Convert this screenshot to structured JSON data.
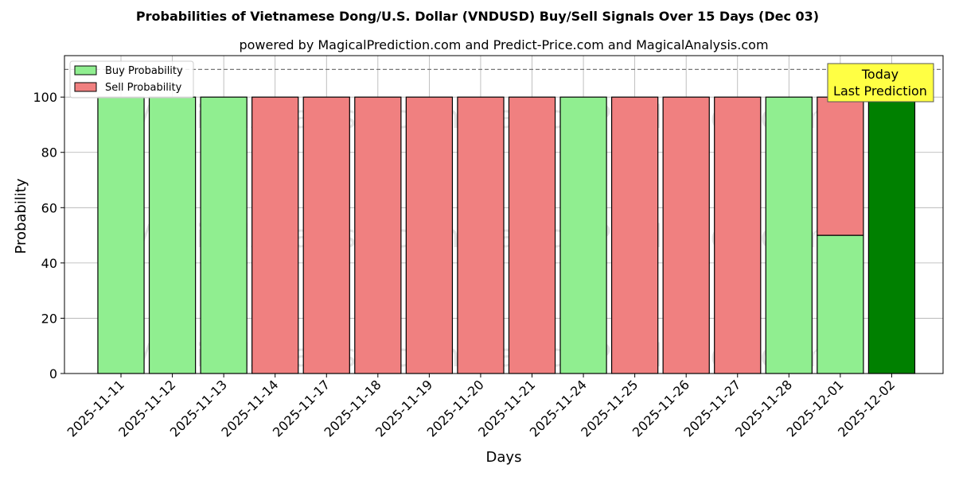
{
  "chart_data": {
    "type": "bar",
    "stacked": true,
    "title": "Probabilities of Vietnamese Dong/U.S. Dollar (VNDUSD) Buy/Sell Signals Over 15 Days (Dec 03)",
    "subtitle": "powered by MagicalPrediction.com and Predict-Price.com and MagicalAnalysis.com",
    "xlabel": "Days",
    "ylabel": "Probability",
    "ylim": [
      0,
      115
    ],
    "yticks": [
      0,
      20,
      40,
      60,
      80,
      100
    ],
    "reference_line": 110,
    "grid": true,
    "legend_position": "top-left",
    "categories": [
      "2025-11-11",
      "2025-11-12",
      "2025-11-13",
      "2025-11-14",
      "2025-11-17",
      "2025-11-18",
      "2025-11-19",
      "2025-11-20",
      "2025-11-21",
      "2025-11-24",
      "2025-11-25",
      "2025-11-26",
      "2025-11-27",
      "2025-11-28",
      "2025-12-01",
      "2025-12-02"
    ],
    "series": [
      {
        "name": "Buy Probability",
        "color": "#90ee90",
        "values": [
          100,
          100,
          100,
          0,
          0,
          0,
          0,
          0,
          0,
          100,
          0,
          0,
          0,
          100,
          50,
          100
        ]
      },
      {
        "name": "Sell Probability",
        "color": "#f08080",
        "values": [
          0,
          0,
          0,
          100,
          100,
          100,
          100,
          100,
          100,
          0,
          100,
          100,
          100,
          0,
          50,
          0
        ]
      }
    ],
    "highlight": {
      "index": 15,
      "color": "#008000"
    },
    "annotation": {
      "line1": "Today",
      "line2": "Last Prediction",
      "background": "#ffff44"
    },
    "watermark": "MagicalAnalysis.com        MagicalPrediction.com"
  }
}
